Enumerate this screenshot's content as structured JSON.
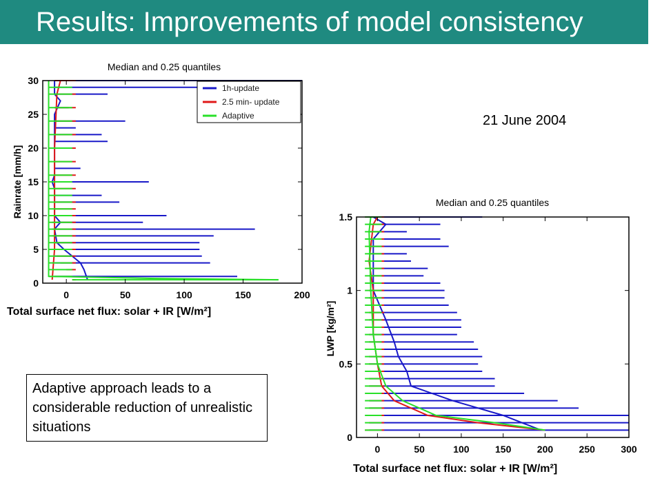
{
  "slide": {
    "title": "Results: Improvements of model consistency",
    "date": "21 June 2004",
    "note": "Adaptive approach leads to a considerable reduction of unrealistic situations"
  },
  "colors": {
    "header": "#1f8a80",
    "s1": "#1818c8",
    "s2": "#e01818",
    "s3": "#28e028"
  },
  "chart_data": [
    {
      "type": "line",
      "title": "Median and 0.25 quantiles",
      "xlabel": "Total surface net flux: solar + IR [W/m²]",
      "ylabel": "Rainrate [mm/h]",
      "xlim": [
        -20,
        200
      ],
      "ylim": [
        0,
        30
      ],
      "xticks": [
        "0",
        "50",
        "100",
        "150",
        "200"
      ],
      "yticks": [
        "0",
        "5",
        "10",
        "15",
        "20",
        "25",
        "30"
      ],
      "legend_position": "top-right",
      "series": [
        {
          "name": "1h-update",
          "median": [
            [
              18,
              0.5
            ],
            [
              15,
              2
            ],
            [
              12,
              3
            ],
            [
              -2,
              5
            ],
            [
              -8,
              6
            ],
            [
              -10,
              8
            ],
            [
              -5,
              9
            ],
            [
              -10,
              10
            ],
            [
              -10,
              14
            ],
            [
              -12,
              15
            ],
            [
              -10,
              16
            ],
            [
              -10,
              25
            ],
            [
              -5,
              27
            ],
            [
              -10,
              28
            ],
            [
              -10,
              30
            ]
          ],
          "whiskers": [
            [
              1,
              145
            ],
            [
              3,
              122
            ],
            [
              4,
              115
            ],
            [
              5,
              113
            ],
            [
              6,
              113
            ],
            [
              7,
              125
            ],
            [
              8,
              160
            ],
            [
              9,
              65
            ],
            [
              10,
              85
            ],
            [
              12,
              45
            ],
            [
              13,
              30
            ],
            [
              15,
              70
            ],
            [
              17,
              12
            ],
            [
              21,
              35
            ],
            [
              22,
              30
            ],
            [
              23,
              8
            ],
            [
              24,
              50
            ],
            [
              26,
              2
            ],
            [
              28,
              35
            ],
            [
              29,
              150
            ],
            [
              30,
              200
            ]
          ]
        },
        {
          "name": "2.5 min- update",
          "median": [
            [
              -12,
              0.5
            ],
            [
              -10,
              5
            ],
            [
              -10,
              20
            ],
            [
              -8,
              28
            ],
            [
              -5,
              30
            ]
          ],
          "whiskers": [
            [
              0.5,
              5
            ],
            [
              2,
              0
            ],
            [
              3,
              -5
            ],
            [
              4,
              -8
            ],
            [
              5,
              -10
            ],
            [
              6,
              -10
            ],
            [
              7,
              -12
            ],
            [
              8,
              -12
            ],
            [
              9,
              -12
            ],
            [
              10,
              -12
            ],
            [
              11,
              -10
            ],
            [
              12,
              -10
            ],
            [
              14,
              -10
            ],
            [
              16,
              -10
            ],
            [
              18,
              -10
            ],
            [
              20,
              -10
            ],
            [
              22,
              -10
            ],
            [
              24,
              -10
            ],
            [
              26,
              -10
            ],
            [
              28,
              -10
            ],
            [
              30,
              -10
            ]
          ]
        },
        {
          "name": "Adaptive",
          "median": [
            [
              180,
              0.5
            ],
            [
              75,
              0.7
            ],
            [
              -15,
              1
            ],
            [
              -15,
              29
            ],
            [
              -15,
              30
            ]
          ],
          "whiskers": [
            [
              0.5,
              180
            ],
            [
              1,
              -15
            ],
            [
              2,
              -15
            ],
            [
              3,
              -15
            ],
            [
              4,
              -15
            ],
            [
              5,
              -15
            ],
            [
              6,
              -15
            ],
            [
              7,
              -15
            ],
            [
              8,
              -15
            ],
            [
              9,
              -15
            ],
            [
              10,
              -15
            ],
            [
              11,
              -15
            ],
            [
              12,
              -15
            ],
            [
              13,
              -15
            ],
            [
              14,
              -15
            ],
            [
              15,
              -15
            ],
            [
              16,
              -15
            ],
            [
              18,
              -15
            ],
            [
              20,
              -15
            ],
            [
              22,
              -15
            ],
            [
              24,
              -15
            ],
            [
              26,
              -15
            ],
            [
              28,
              -15
            ],
            [
              29,
              -15
            ]
          ]
        }
      ]
    },
    {
      "type": "line",
      "title": "Median and 0.25 quantiles",
      "xlabel": "Total surface net flux: solar + IR [W/m²]",
      "ylabel": "LWP  [kg/m²]",
      "xlim": [
        -25,
        300
      ],
      "ylim": [
        0,
        1.5
      ],
      "xticks": [
        "0",
        "50",
        "100",
        "150",
        "200",
        "250",
        "300"
      ],
      "yticks": [
        "0",
        "0.5",
        "1",
        "1.5"
      ],
      "series": [
        {
          "name": "1h-update",
          "median": [
            [
              195,
              0.05
            ],
            [
              150,
              0.15
            ],
            [
              90,
              0.25
            ],
            [
              40,
              0.35
            ],
            [
              35,
              0.45
            ],
            [
              25,
              0.55
            ],
            [
              20,
              0.65
            ],
            [
              10,
              0.8
            ],
            [
              -5,
              1.0
            ],
            [
              -5,
              1.1
            ],
            [
              -5,
              1.35
            ],
            [
              10,
              1.45
            ],
            [
              -5,
              1.5
            ]
          ],
          "whiskers": [
            [
              0.05,
              300
            ],
            [
              0.1,
              300
            ],
            [
              0.15,
              300
            ],
            [
              0.2,
              240
            ],
            [
              0.25,
              215
            ],
            [
              0.3,
              175
            ],
            [
              0.35,
              140
            ],
            [
              0.4,
              140
            ],
            [
              0.45,
              125
            ],
            [
              0.5,
              120
            ],
            [
              0.55,
              125
            ],
            [
              0.6,
              120
            ],
            [
              0.65,
              115
            ],
            [
              0.7,
              95
            ],
            [
              0.75,
              100
            ],
            [
              0.8,
              100
            ],
            [
              0.85,
              95
            ],
            [
              0.9,
              85
            ],
            [
              0.95,
              80
            ],
            [
              1.0,
              80
            ],
            [
              1.05,
              75
            ],
            [
              1.1,
              55
            ],
            [
              1.15,
              60
            ],
            [
              1.2,
              40
            ],
            [
              1.25,
              35
            ],
            [
              1.3,
              85
            ],
            [
              1.35,
              75
            ],
            [
              1.4,
              35
            ],
            [
              1.45,
              75
            ],
            [
              1.5,
              125
            ]
          ]
        },
        {
          "name": "2.5 min- update",
          "median": [
            [
              200,
              0.05
            ],
            [
              120,
              0.1
            ],
            [
              60,
              0.15
            ],
            [
              20,
              0.25
            ],
            [
              5,
              0.35
            ],
            [
              0,
              0.5
            ],
            [
              -5,
              0.7
            ],
            [
              -5,
              1.0
            ],
            [
              -10,
              1.2
            ],
            [
              -5,
              1.45
            ],
            [
              0,
              1.5
            ]
          ],
          "whiskers": [
            [
              0.05,
              -15
            ],
            [
              0.1,
              -10
            ],
            [
              0.15,
              -10
            ],
            [
              0.2,
              -10
            ],
            [
              0.25,
              -10
            ],
            [
              0.3,
              -10
            ],
            [
              0.35,
              -10
            ],
            [
              0.4,
              -10
            ],
            [
              0.45,
              -10
            ],
            [
              0.5,
              -10
            ],
            [
              0.55,
              -10
            ],
            [
              0.6,
              -10
            ],
            [
              0.65,
              -10
            ],
            [
              0.7,
              -10
            ],
            [
              0.75,
              -10
            ],
            [
              0.8,
              -10
            ],
            [
              0.85,
              -10
            ],
            [
              0.9,
              -10
            ],
            [
              0.95,
              -10
            ],
            [
              1.0,
              -10
            ],
            [
              1.05,
              -10
            ],
            [
              1.1,
              -10
            ],
            [
              1.15,
              -10
            ],
            [
              1.2,
              -10
            ],
            [
              1.25,
              -10
            ],
            [
              1.3,
              -10
            ],
            [
              1.35,
              -10
            ],
            [
              1.4,
              -10
            ],
            [
              1.45,
              -10
            ],
            [
              1.5,
              -10
            ]
          ]
        },
        {
          "name": "Adaptive",
          "median": [
            [
              200,
              0.05
            ],
            [
              140,
              0.1
            ],
            [
              70,
              0.15
            ],
            [
              30,
              0.25
            ],
            [
              10,
              0.35
            ],
            [
              0,
              0.5
            ],
            [
              -5,
              0.7
            ],
            [
              -8,
              1.0
            ],
            [
              -10,
              1.4
            ],
            [
              -8,
              1.5
            ]
          ],
          "whiskers": [
            [
              0.05,
              -15
            ],
            [
              0.1,
              -15
            ],
            [
              0.15,
              -15
            ],
            [
              0.2,
              -15
            ],
            [
              0.25,
              -15
            ],
            [
              0.3,
              -15
            ],
            [
              0.35,
              -15
            ],
            [
              0.4,
              -15
            ],
            [
              0.45,
              -15
            ],
            [
              0.5,
              -15
            ],
            [
              0.55,
              -15
            ],
            [
              0.6,
              -15
            ],
            [
              0.65,
              -15
            ],
            [
              0.7,
              -15
            ],
            [
              0.75,
              -15
            ],
            [
              0.8,
              -15
            ],
            [
              0.85,
              -15
            ],
            [
              0.9,
              -15
            ],
            [
              0.95,
              -15
            ],
            [
              1.0,
              -15
            ],
            [
              1.05,
              -15
            ],
            [
              1.1,
              -15
            ],
            [
              1.15,
              -15
            ],
            [
              1.2,
              -15
            ],
            [
              1.25,
              -15
            ],
            [
              1.3,
              -15
            ],
            [
              1.35,
              -15
            ],
            [
              1.4,
              -15
            ],
            [
              1.45,
              -15
            ],
            [
              1.5,
              -15
            ]
          ]
        }
      ]
    }
  ]
}
